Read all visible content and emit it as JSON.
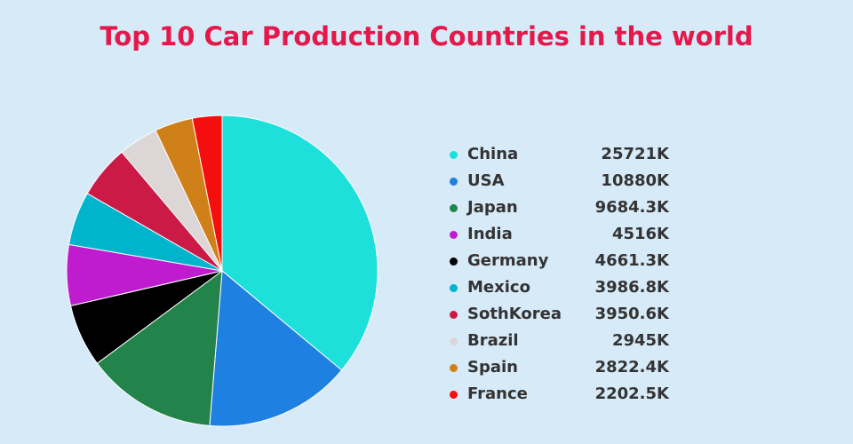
{
  "chart_data": {
    "type": "pie",
    "title": "Top 10 Car Production Countries in the world",
    "legend_position": "right",
    "slices": [
      {
        "label": "China",
        "value": 25721,
        "display": "25721K",
        "color": "#1de0db"
      },
      {
        "label": "USA",
        "value": 10880,
        "display": "10880K",
        "color": "#1e80e0"
      },
      {
        "label": "Japan",
        "value": 9684.3,
        "display": "9684.3K",
        "color": "#22844a"
      },
      {
        "label": "India",
        "value": 4516,
        "display": "4516K",
        "color": "#c01ccf"
      },
      {
        "label": "Germany",
        "value": 4661.3,
        "display": "4661.3K",
        "color": "#000000"
      },
      {
        "label": "Mexico",
        "value": 3986.8,
        "display": "3986.8K",
        "color": "#00b4cc"
      },
      {
        "label": "SothKorea",
        "value": 3950.6,
        "display": "3950.6K",
        "color": "#cc1a47"
      },
      {
        "label": "Brazil",
        "value": 2945,
        "display": "2945K",
        "color": "#dcd6d6"
      },
      {
        "label": "Spain",
        "value": 2822.4,
        "display": "2822.4K",
        "color": "#d08018"
      },
      {
        "label": "France",
        "value": 2202.5,
        "display": "2202.5K",
        "color": "#f50e0e"
      }
    ]
  }
}
